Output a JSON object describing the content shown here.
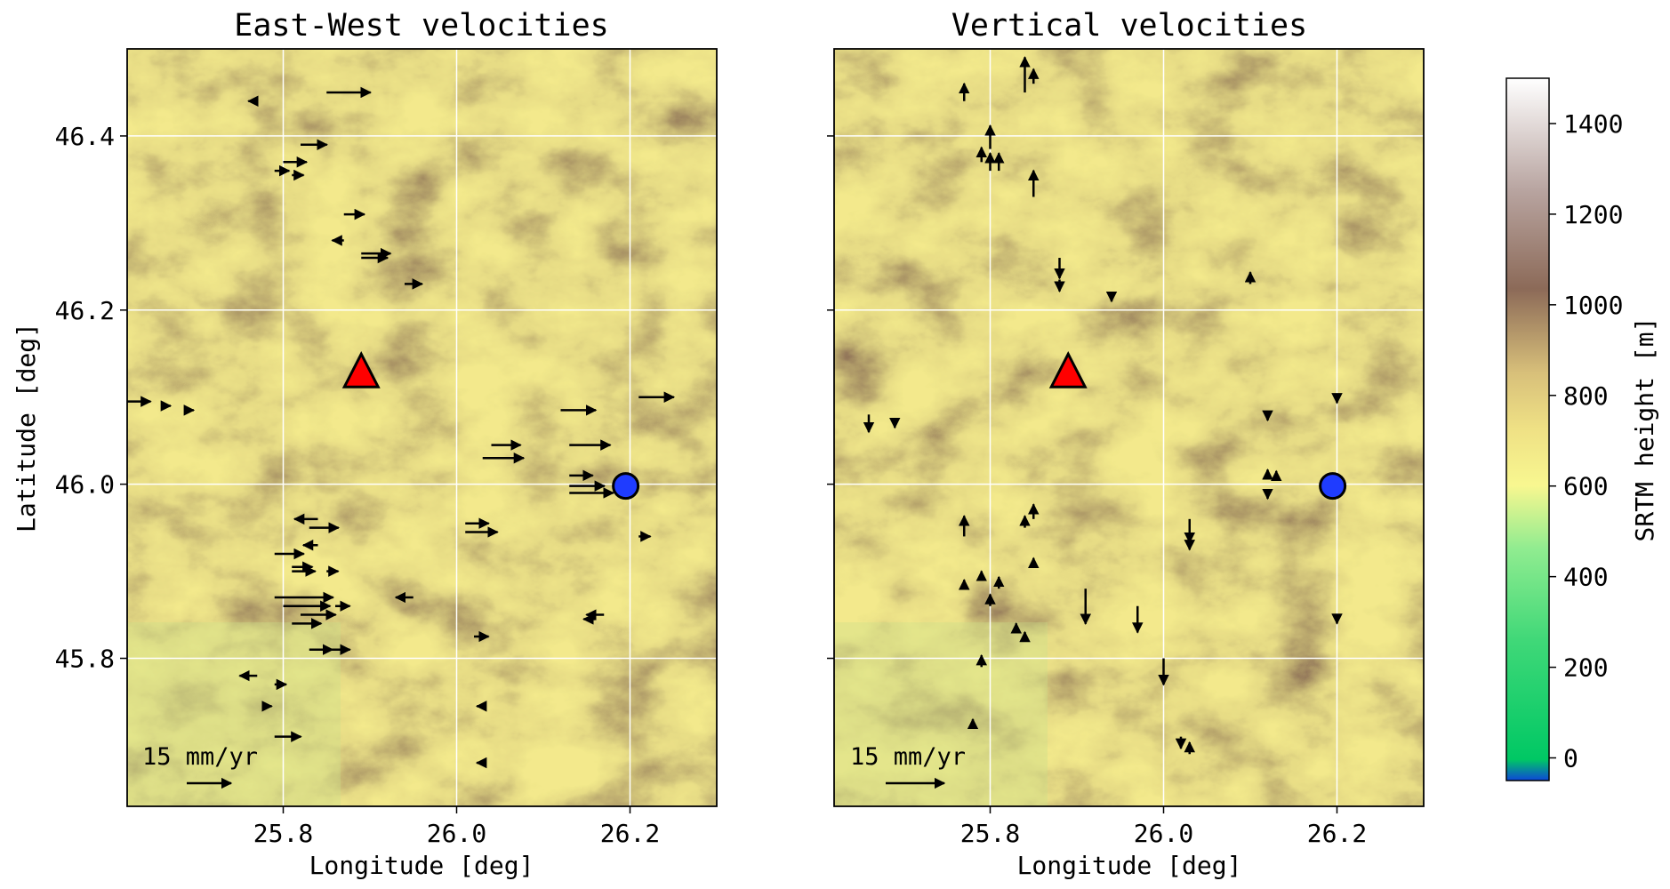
{
  "chart_data": [
    {
      "type": "scatter",
      "title": "East-West velocities",
      "xlabel": "Longitude [deg]",
      "ylabel": "Latitude [deg]",
      "xlim": [
        25.62,
        26.3
      ],
      "ylim": [
        45.63,
        46.5
      ],
      "xticks": [
        "25.8",
        "26.0",
        "26.2"
      ],
      "yticks": [
        "46.4",
        "46.2",
        "46.0",
        "45.8"
      ],
      "grid": true,
      "background": "SRTM elevation map",
      "scale_label": "15 mm/yr",
      "scale_mm_yr": 15,
      "markers": {
        "volcano_triangle": {
          "lon": 25.89,
          "lat": 46.125,
          "color": "#ff0000"
        },
        "circle": {
          "lon": 26.195,
          "lat": 45.998,
          "color": "#1f3cff"
        }
      },
      "vectors": [
        {
          "lon": 25.85,
          "lat": 46.45,
          "ve": 15
        },
        {
          "lon": 25.77,
          "lat": 46.44,
          "ve": -3
        },
        {
          "lon": 25.82,
          "lat": 46.39,
          "ve": 9
        },
        {
          "lon": 25.8,
          "lat": 46.37,
          "ve": 8
        },
        {
          "lon": 25.79,
          "lat": 46.36,
          "ve": 5
        },
        {
          "lon": 25.81,
          "lat": 46.355,
          "ve": 4
        },
        {
          "lon": 25.87,
          "lat": 46.31,
          "ve": 7
        },
        {
          "lon": 25.87,
          "lat": 46.28,
          "ve": -4
        },
        {
          "lon": 25.89,
          "lat": 46.265,
          "ve": 10
        },
        {
          "lon": 25.89,
          "lat": 46.26,
          "ve": 9
        },
        {
          "lon": 25.94,
          "lat": 46.23,
          "ve": 6
        },
        {
          "lon": 25.62,
          "lat": 46.095,
          "ve": 8
        },
        {
          "lon": 25.66,
          "lat": 46.09,
          "ve": 3
        },
        {
          "lon": 25.69,
          "lat": 46.085,
          "ve": 2
        },
        {
          "lon": 26.12,
          "lat": 46.085,
          "ve": 12
        },
        {
          "lon": 26.21,
          "lat": 46.1,
          "ve": 12
        },
        {
          "lon": 26.04,
          "lat": 46.045,
          "ve": 10
        },
        {
          "lon": 26.03,
          "lat": 46.03,
          "ve": 14
        },
        {
          "lon": 26.13,
          "lat": 46.045,
          "ve": 14
        },
        {
          "lon": 26.13,
          "lat": 46.01,
          "ve": 8
        },
        {
          "lon": 26.13,
          "lat": 45.998,
          "ve": 12
        },
        {
          "lon": 26.13,
          "lat": 45.99,
          "ve": 15
        },
        {
          "lon": 26.01,
          "lat": 45.955,
          "ve": 8
        },
        {
          "lon": 26.01,
          "lat": 45.945,
          "ve": 11
        },
        {
          "lon": 26.21,
          "lat": 45.94,
          "ve": 4
        },
        {
          "lon": 25.84,
          "lat": 45.96,
          "ve": -8
        },
        {
          "lon": 25.83,
          "lat": 45.95,
          "ve": 10
        },
        {
          "lon": 25.84,
          "lat": 45.93,
          "ve": -5
        },
        {
          "lon": 25.79,
          "lat": 45.92,
          "ve": 10
        },
        {
          "lon": 25.81,
          "lat": 45.905,
          "ve": 7
        },
        {
          "lon": 25.81,
          "lat": 45.9,
          "ve": 8
        },
        {
          "lon": 25.85,
          "lat": 45.9,
          "ve": 4
        },
        {
          "lon": 25.79,
          "lat": 45.87,
          "ve": 20
        },
        {
          "lon": 25.8,
          "lat": 45.86,
          "ve": 16
        },
        {
          "lon": 25.82,
          "lat": 45.85,
          "ve": 12
        },
        {
          "lon": 25.81,
          "lat": 45.84,
          "ve": 10
        },
        {
          "lon": 25.86,
          "lat": 45.86,
          "ve": 5
        },
        {
          "lon": 25.95,
          "lat": 45.87,
          "ve": -6
        },
        {
          "lon": 26.17,
          "lat": 45.85,
          "ve": -6
        },
        {
          "lon": 26.16,
          "lat": 45.845,
          "ve": -4
        },
        {
          "lon": 26.02,
          "lat": 45.825,
          "ve": 5
        },
        {
          "lon": 25.83,
          "lat": 45.81,
          "ve": 8
        },
        {
          "lon": 25.85,
          "lat": 45.81,
          "ve": 8
        },
        {
          "lon": 25.77,
          "lat": 45.78,
          "ve": -6
        },
        {
          "lon": 25.79,
          "lat": 45.77,
          "ve": 4
        },
        {
          "lon": 25.78,
          "lat": 45.745,
          "ve": 2
        },
        {
          "lon": 26.03,
          "lat": 45.745,
          "ve": -2
        },
        {
          "lon": 25.79,
          "lat": 45.71,
          "ve": 9
        },
        {
          "lon": 26.03,
          "lat": 45.68,
          "ve": -2
        }
      ]
    },
    {
      "type": "scatter",
      "title": "Vertical velocities",
      "xlabel": "Longitude [deg]",
      "ylabel": "",
      "xlim": [
        25.62,
        26.3
      ],
      "ylim": [
        45.63,
        46.5
      ],
      "xticks": [
        "25.8",
        "26.0",
        "26.2"
      ],
      "yticks": [
        "",
        "",
        "",
        ""
      ],
      "grid": true,
      "background": "SRTM elevation map",
      "scale_label": "15 mm/yr",
      "scale_mm_yr": 15,
      "markers": {
        "volcano_triangle": {
          "lon": 25.89,
          "lat": 46.125,
          "color": "#ff0000"
        },
        "circle": {
          "lon": 26.195,
          "lat": 45.998,
          "color": "#1f3cff"
        }
      },
      "vectors": [
        {
          "lon": 25.77,
          "lat": 46.44,
          "vu": 6
        },
        {
          "lon": 25.84,
          "lat": 46.45,
          "vu": 12
        },
        {
          "lon": 25.85,
          "lat": 46.46,
          "vu": 5
        },
        {
          "lon": 25.8,
          "lat": 46.385,
          "vu": 8
        },
        {
          "lon": 25.79,
          "lat": 46.37,
          "vu": 5
        },
        {
          "lon": 25.8,
          "lat": 46.36,
          "vu": 6
        },
        {
          "lon": 25.81,
          "lat": 46.36,
          "vu": 6
        },
        {
          "lon": 25.85,
          "lat": 46.33,
          "vu": 9
        },
        {
          "lon": 25.88,
          "lat": 46.26,
          "vu": -7
        },
        {
          "lon": 25.88,
          "lat": 46.235,
          "vu": -4
        },
        {
          "lon": 25.94,
          "lat": 46.22,
          "vu": -3
        },
        {
          "lon": 26.1,
          "lat": 46.23,
          "vu": 4
        },
        {
          "lon": 25.66,
          "lat": 46.08,
          "vu": -6
        },
        {
          "lon": 25.69,
          "lat": 46.075,
          "vu": -3
        },
        {
          "lon": 26.12,
          "lat": 46.08,
          "vu": -2
        },
        {
          "lon": 26.2,
          "lat": 46.1,
          "vu": -2
        },
        {
          "lon": 26.12,
          "lat": 46.01,
          "vu": 2
        },
        {
          "lon": 26.13,
          "lat": 46.005,
          "vu": 3
        },
        {
          "lon": 26.12,
          "lat": 45.99,
          "vu": -2
        },
        {
          "lon": 26.03,
          "lat": 45.96,
          "vu": -8
        },
        {
          "lon": 26.03,
          "lat": 45.945,
          "vu": -6
        },
        {
          "lon": 25.77,
          "lat": 45.94,
          "vu": 7
        },
        {
          "lon": 25.84,
          "lat": 45.95,
          "vu": 4
        },
        {
          "lon": 25.85,
          "lat": 45.96,
          "vu": 5
        },
        {
          "lon": 25.85,
          "lat": 45.905,
          "vu": 3
        },
        {
          "lon": 25.79,
          "lat": 45.89,
          "vu": 3
        },
        {
          "lon": 25.81,
          "lat": 45.88,
          "vu": 4
        },
        {
          "lon": 25.77,
          "lat": 45.88,
          "vu": 3
        },
        {
          "lon": 25.8,
          "lat": 45.86,
          "vu": 4
        },
        {
          "lon": 25.83,
          "lat": 45.83,
          "vu": 3
        },
        {
          "lon": 25.84,
          "lat": 45.82,
          "vu": 3
        },
        {
          "lon": 25.91,
          "lat": 45.88,
          "vu": -12
        },
        {
          "lon": 25.97,
          "lat": 45.86,
          "vu": -9
        },
        {
          "lon": 26.0,
          "lat": 45.8,
          "vu": -9
        },
        {
          "lon": 26.2,
          "lat": 45.85,
          "vu": -3
        },
        {
          "lon": 25.79,
          "lat": 45.79,
          "vu": 4
        },
        {
          "lon": 25.78,
          "lat": 45.72,
          "vu": 3
        },
        {
          "lon": 26.02,
          "lat": 45.71,
          "vu": -4
        },
        {
          "lon": 26.03,
          "lat": 45.69,
          "vu": 4
        }
      ]
    },
    {
      "type": "heatmap",
      "role": "colorbar",
      "ylabel": "SRTM height [m]",
      "ylim": [
        -50,
        1500
      ],
      "ticks": [
        "0",
        "200",
        "400",
        "600",
        "800",
        "1000",
        "1200",
        "1400"
      ],
      "colors": [
        "#0d47d8",
        "#00c864",
        "#90ec90",
        "#f8f790",
        "#d8c07a",
        "#8c6a58",
        "#ffffff"
      ]
    }
  ]
}
